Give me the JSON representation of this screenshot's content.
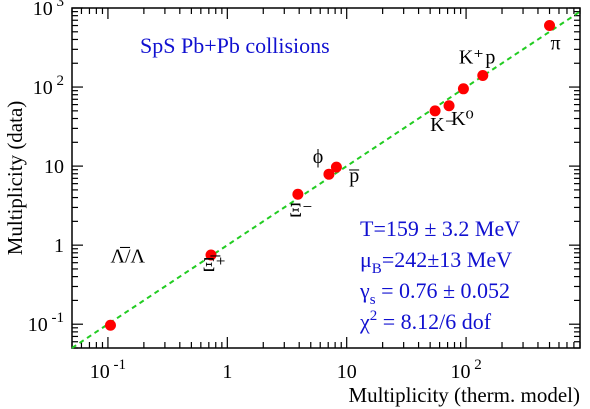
{
  "chart_data": {
    "type": "scatter",
    "title": "SpS  Pb+Pb collisions",
    "xlabel": "Multiplicity (therm. model)",
    "ylabel": "Multiplicity (data)",
    "xscale": "log",
    "yscale": "log",
    "xlim": [
      0.05,
      900
    ],
    "ylim": [
      0.05,
      1000
    ],
    "grid": false,
    "x_ticks": [
      {
        "value": 0.1,
        "base": "10",
        "exp": "-1"
      },
      {
        "value": 1,
        "base": "1",
        "exp": ""
      },
      {
        "value": 10,
        "base": "10",
        "exp": ""
      },
      {
        "value": 100,
        "base": "10",
        "exp": "2"
      }
    ],
    "y_ticks": [
      {
        "value": 0.1,
        "base": "10",
        "exp": "-1"
      },
      {
        "value": 1,
        "base": "1",
        "exp": ""
      },
      {
        "value": 10,
        "base": "10",
        "exp": ""
      },
      {
        "value": 100,
        "base": "10",
        "exp": "2"
      },
      {
        "value": 1000,
        "base": "10",
        "exp": "3"
      }
    ],
    "reference_line": {
      "label": "",
      "slope": 1,
      "color": "#22cc22",
      "style": "dashed"
    },
    "points": [
      {
        "x": 0.105,
        "y": 0.097
      },
      {
        "x": 0.73,
        "y": 0.75
      },
      {
        "x": 3.9,
        "y": 4.4
      },
      {
        "x": 7.1,
        "y": 7.9
      },
      {
        "x": 8.2,
        "y": 9.7
      },
      {
        "x": 55,
        "y": 50
      },
      {
        "x": 72,
        "y": 58
      },
      {
        "x": 95,
        "y": 95
      },
      {
        "x": 138,
        "y": 140
      },
      {
        "x": 500,
        "y": 600
      }
    ],
    "point_color": "#ff0000",
    "annotations": [
      {
        "text": "Λ̅/Λ",
        "x": 0.105,
        "y": 0.6
      },
      {
        "text": "Ξ̅⁺",
        "x": 0.62,
        "y": 0.47
      },
      {
        "text": "Ξ⁻",
        "x": 3.3,
        "y": 2.3
      },
      {
        "text": "ϕ",
        "x": 5.2,
        "y": 11
      },
      {
        "text": "p̅",
        "x": 10.5,
        "y": 6.3
      },
      {
        "text": "K⁻",
        "x": 50,
        "y": 28
      },
      {
        "text": "K⁰",
        "x": 75,
        "y": 33
      },
      {
        "text": "K⁺",
        "x": 87,
        "y": 200
      },
      {
        "text": "p",
        "x": 145,
        "y": 200
      },
      {
        "text": "π",
        "x": 510,
        "y": 300
      }
    ],
    "fit_results": [
      {
        "main": "T=159 ± 3.2 MeV",
        "sub": ""
      },
      {
        "main": "μ",
        "sub": "B",
        "after": "=242±13 MeV"
      },
      {
        "main": "γ",
        "sub": "s",
        "after": " = 0.76 ± 0.052"
      },
      {
        "main": "χ",
        "sup": "2",
        "after": " = 8.12/6 dof"
      }
    ],
    "title_color": "#1010d0"
  }
}
